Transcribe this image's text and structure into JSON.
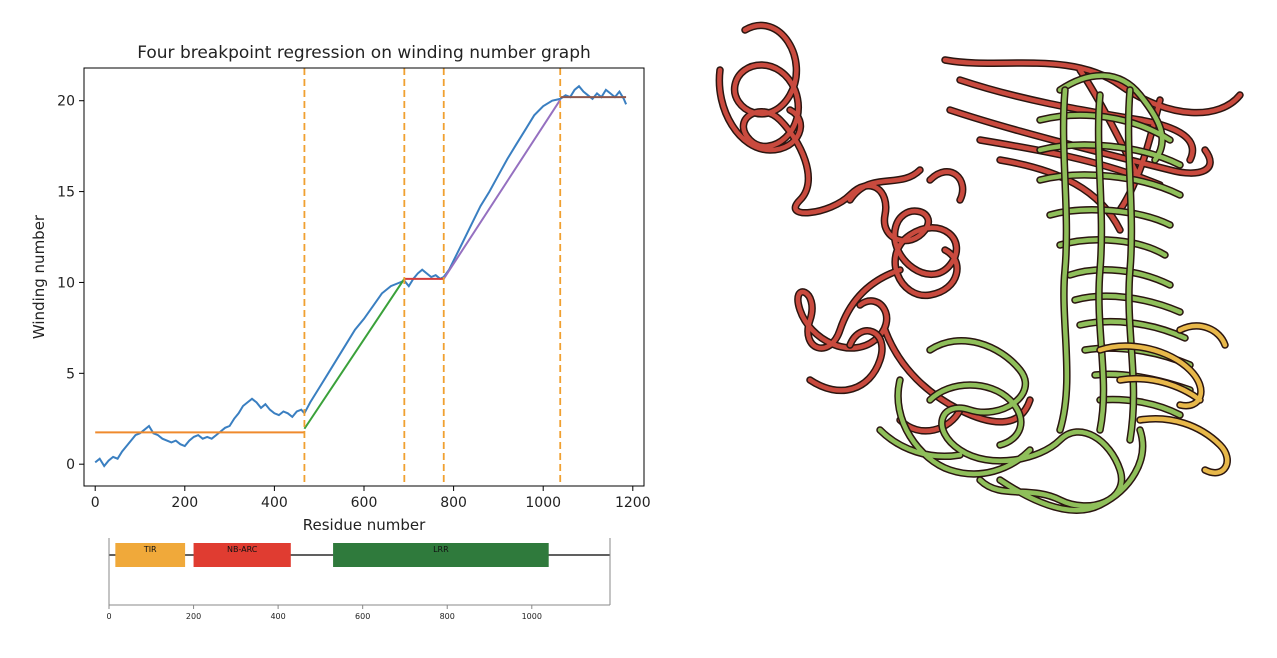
{
  "chart_data": [
    {
      "type": "line",
      "title": "Four breakpoint regression on winding number graph",
      "xlabel": "Residue number",
      "ylabel": "Winding number",
      "xlim": [
        -25,
        1225
      ],
      "ylim": [
        -1.2,
        21.8
      ],
      "xticks": [
        0,
        200,
        400,
        600,
        800,
        1000,
        1200
      ],
      "yticks": [
        0,
        5,
        10,
        15,
        20
      ],
      "grid": false,
      "colors": {
        "winding": "#3a7fc1",
        "fit_flat1": "#ef8a2d",
        "fit_slope1": "#3aa13a",
        "fit_flat2": "#d43b3b",
        "fit_slope2": "#9570c0",
        "fit_flat3": "#8c564b",
        "breakpoint": "#f0a030"
      },
      "breakpoints": [
        467,
        690,
        778,
        1038
      ],
      "series": [
        {
          "x": [
            0,
            10,
            20,
            30,
            40,
            50,
            60,
            70,
            80,
            90,
            100,
            110,
            120,
            130,
            140,
            150,
            160,
            170,
            180,
            190,
            200,
            210,
            220,
            230,
            240,
            250,
            260,
            270,
            280,
            290,
            300,
            310,
            320,
            330,
            340,
            350,
            360,
            370,
            380,
            390,
            400,
            410,
            420,
            430,
            440,
            450,
            460,
            467,
            480,
            500,
            520,
            540,
            560,
            580,
            600,
            620,
            640,
            660,
            680,
            690,
            700,
            710,
            720,
            730,
            740,
            750,
            760,
            770,
            778,
            790,
            800,
            820,
            840,
            860,
            880,
            900,
            920,
            940,
            960,
            980,
            1000,
            1020,
            1038,
            1050,
            1060,
            1070,
            1080,
            1090,
            1100,
            1110,
            1120,
            1130,
            1140,
            1150,
            1160,
            1170,
            1180,
            1185
          ],
          "values": [
            0.1,
            0.3,
            -0.1,
            0.2,
            0.4,
            0.3,
            0.7,
            1.0,
            1.3,
            1.6,
            1.7,
            1.9,
            2.1,
            1.7,
            1.6,
            1.4,
            1.3,
            1.2,
            1.3,
            1.1,
            1.0,
            1.3,
            1.5,
            1.6,
            1.4,
            1.5,
            1.4,
            1.6,
            1.8,
            2.0,
            2.1,
            2.5,
            2.8,
            3.2,
            3.4,
            3.6,
            3.4,
            3.1,
            3.3,
            3.0,
            2.8,
            2.7,
            2.9,
            2.8,
            2.6,
            2.9,
            3.0,
            2.8,
            3.4,
            4.2,
            5.0,
            5.8,
            6.6,
            7.4,
            8.0,
            8.7,
            9.4,
            9.8,
            10.0,
            10.1,
            9.8,
            10.2,
            10.5,
            10.7,
            10.5,
            10.3,
            10.4,
            10.2,
            10.3,
            10.7,
            11.2,
            12.2,
            13.2,
            14.2,
            15.0,
            15.9,
            16.8,
            17.6,
            18.4,
            19.2,
            19.7,
            20.0,
            20.1,
            20.3,
            20.2,
            20.6,
            20.8,
            20.5,
            20.3,
            20.1,
            20.4,
            20.2,
            20.6,
            20.4,
            20.2,
            20.5,
            20.1,
            19.8
          ]
        }
      ],
      "fit_segments": [
        {
          "x": [
            0,
            467
          ],
          "y": [
            1.75,
            1.75
          ]
        },
        {
          "x": [
            467,
            690
          ],
          "y": [
            1.95,
            10.2
          ]
        },
        {
          "x": [
            690,
            778
          ],
          "y": [
            10.2,
            10.2
          ]
        },
        {
          "x": [
            778,
            1038
          ],
          "y": [
            10.2,
            20.05
          ]
        },
        {
          "x": [
            1038,
            1185
          ],
          "y": [
            20.2,
            20.2
          ]
        }
      ]
    },
    {
      "type": "bar",
      "xlim": [
        0,
        1185
      ],
      "xticks": [
        0,
        200,
        400,
        600,
        800,
        1000
      ],
      "domains": [
        {
          "name": "TIR",
          "start": 15,
          "end": 180,
          "color": "#f0a93a"
        },
        {
          "name": "NB-ARC",
          "start": 200,
          "end": 430,
          "color": "#e03c31"
        },
        {
          "name": "LRR",
          "start": 530,
          "end": 1040,
          "color": "#2f7a3c"
        }
      ]
    }
  ],
  "structure": {
    "colors": {
      "red": "#c94a3e",
      "green": "#8fbf5a",
      "orange": "#e8b84a",
      "outline": "#2a1510"
    }
  }
}
